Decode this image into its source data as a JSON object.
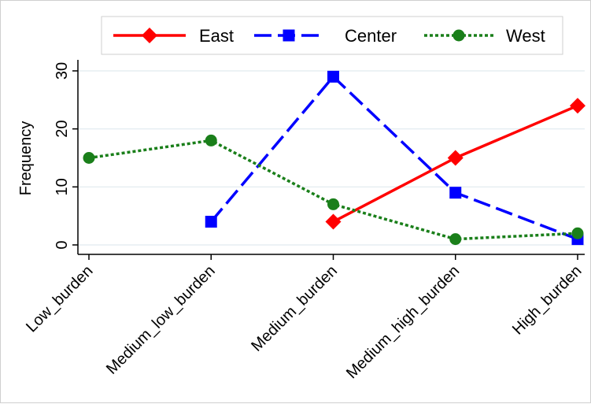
{
  "chart_data": {
    "type": "line",
    "categories": [
      "Low_burden",
      "Medium_low_burden",
      "Medium_burden",
      "Medium_high_burden",
      "High_burden"
    ],
    "ylabel": "Frequency",
    "xlabel": "",
    "ylim": [
      0,
      30
    ],
    "yticks": [
      0,
      10,
      20,
      30
    ],
    "grid": true,
    "legend_position": "top",
    "series": [
      {
        "name": "East",
        "values": [
          null,
          null,
          4,
          15,
          24
        ],
        "color": "#ff0000",
        "marker": "diamond",
        "dash": "solid"
      },
      {
        "name": "Center",
        "values": [
          null,
          4,
          29,
          9,
          1
        ],
        "color": "#0000ff",
        "marker": "square",
        "dash": "long-dash"
      },
      {
        "name": "West",
        "values": [
          15,
          18,
          7,
          1,
          2
        ],
        "color": "#1a7f1a",
        "marker": "circle",
        "dash": "short-dash"
      }
    ]
  }
}
